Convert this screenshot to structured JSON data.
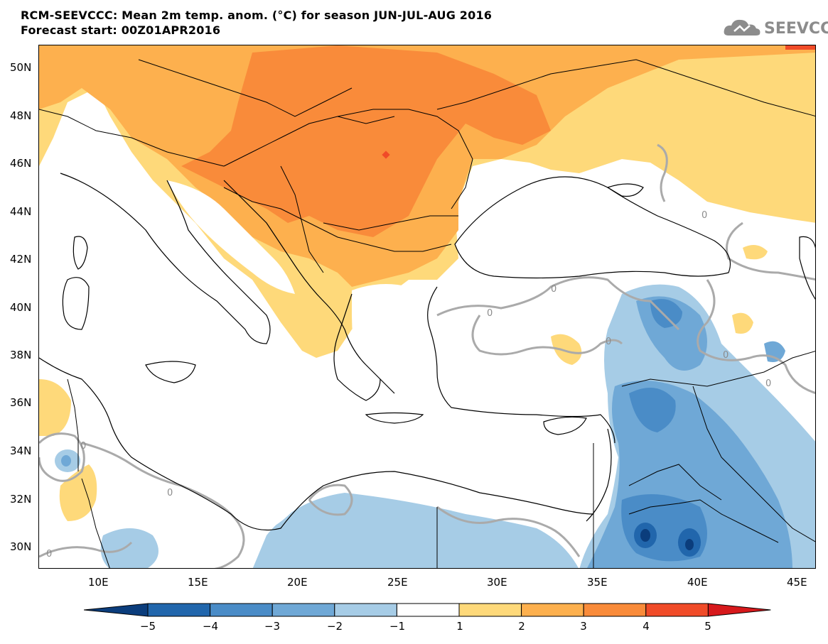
{
  "title": {
    "line1": "RCM-SEEVCCC: Mean 2m temp. anom. (°C) for season JUN-JUL-AUG 2016",
    "line2": "Forecast start: 00Z01APR2016"
  },
  "logo": {
    "text": "SEEVCCC",
    "icon": "cloud-logo-icon"
  },
  "lat_ticks": [
    "50N",
    "48N",
    "46N",
    "44N",
    "42N",
    "40N",
    "38N",
    "36N",
    "34N",
    "32N",
    "30N"
  ],
  "lon_ticks": [
    "10E",
    "15E",
    "20E",
    "25E",
    "30E",
    "35E",
    "40E",
    "45E"
  ],
  "colorbar": {
    "labels": [
      "−5",
      "−4",
      "−3",
      "−2",
      "−1",
      "1",
      "2",
      "3",
      "4",
      "5"
    ],
    "colors": [
      "#0b3d7c",
      "#2166ac",
      "#4a8cc7",
      "#6fa8d6",
      "#a6cce6",
      "#ffffff",
      "#fed97a",
      "#fdb04e",
      "#f98b3a",
      "#f04b28",
      "#d7191c"
    ]
  },
  "contour_label": "0",
  "colors": {
    "ocean": "#ffffff",
    "warm1": "#fed97a",
    "warm2": "#fdb04e",
    "warm3": "#f98b3a",
    "warm4": "#f04b28",
    "cool1": "#a6cce6",
    "cool2": "#6fa8d6",
    "cool3": "#4a8cc7",
    "cool4": "#2166ac",
    "cool5": "#0b3d7c",
    "contour": "#aaaaaa",
    "border": "#000000"
  }
}
